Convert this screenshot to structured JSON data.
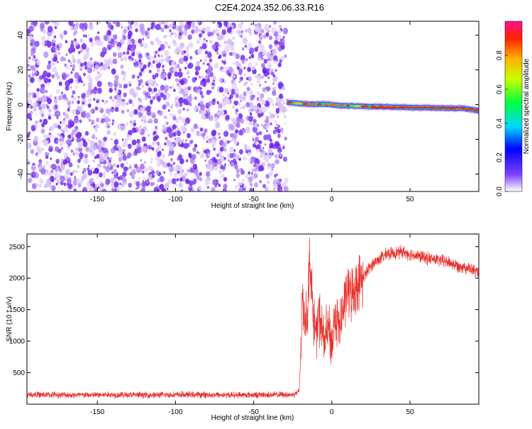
{
  "title": "C2E4.2024.352.06.33.R16",
  "colors": {
    "axis": "#000000",
    "snr_line": "#e8312c",
    "scatter_purple": "#7a2cf0",
    "scatter_light": "#d9c4fb"
  },
  "chart_data": [
    {
      "type": "heatmap",
      "xlabel": "Height of straight line (km)",
      "ylabel": "Frequency (Hz)",
      "xlim": [
        -195,
        94
      ],
      "ylim": [
        -50,
        48
      ],
      "xticks": [
        -150,
        -100,
        -50,
        0,
        50
      ],
      "yticks": [
        -40,
        -20,
        0,
        20,
        40
      ],
      "grid": false,
      "noise_region_x": [
        -195,
        -29
      ],
      "signal_track": {
        "x": [
          -29,
          -25,
          -20,
          -15,
          -10,
          -5,
          0,
          5,
          10,
          15,
          20,
          30,
          40,
          50,
          60,
          70,
          80,
          85,
          90,
          94
        ],
        "frequency": [
          1.5,
          1.0,
          0.5,
          0.3,
          0.2,
          0.2,
          0.0,
          -0.5,
          -0.6,
          -0.8,
          -1.0,
          -1.2,
          -1.4,
          -1.6,
          -1.8,
          -2.0,
          -2.1,
          -2.2,
          -3.0,
          -3.5
        ]
      },
      "colorbar": {
        "label": "Normalized spectral amplitude",
        "ticks": [
          "0.0",
          "0.2",
          "0.4",
          "0.6",
          "0.8"
        ],
        "range": [
          0,
          1
        ]
      }
    },
    {
      "type": "line",
      "xlabel": "Height of straight line (km)",
      "ylabel": "SNR (10 * v/v)",
      "xlim": [
        -195,
        94
      ],
      "ylim": [
        0,
        2700
      ],
      "xticks": [
        -150,
        -100,
        -50,
        0,
        50
      ],
      "yticks": [
        500,
        1000,
        1500,
        2000,
        2500
      ],
      "grid": false,
      "series": [
        {
          "x": [
            -195,
            -180,
            -160,
            -140,
            -120,
            -100,
            -80,
            -60,
            -40,
            -25,
            -21,
            -20,
            -19,
            -18,
            -16,
            -14,
            -12,
            -10,
            -8,
            -5,
            -2,
            0,
            2,
            5,
            8,
            10,
            13,
            16,
            20,
            25,
            30,
            35,
            40,
            45,
            50,
            55,
            60,
            65,
            70,
            75,
            80,
            85,
            90,
            94
          ],
          "values": [
            150,
            150,
            145,
            150,
            145,
            150,
            150,
            145,
            150,
            150,
            200,
            700,
            1700,
            1500,
            1300,
            2400,
            1400,
            1100,
            1400,
            1000,
            1200,
            900,
            1450,
            1200,
            1600,
            1800,
            1750,
            1900,
            2000,
            2200,
            2300,
            2380,
            2400,
            2420,
            2380,
            2350,
            2320,
            2300,
            2280,
            2250,
            2200,
            2180,
            2130,
            2080
          ]
        }
      ]
    }
  ]
}
